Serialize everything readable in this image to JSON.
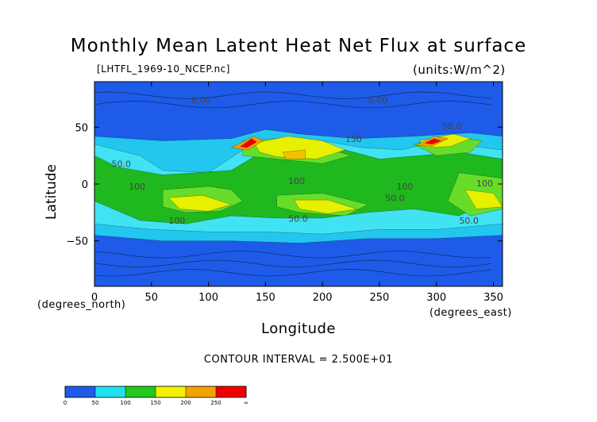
{
  "chart_data": {
    "type": "heatmap",
    "title": "Monthly Mean Latent Heat Net Flux at surface",
    "subtitle": "[LHTFL_1969-10_NCEP.nc]",
    "units": "(units:W/m^2)",
    "xlabel": "Longitude",
    "ylabel": "Latitude",
    "x_units_label": "(degrees_east)",
    "y_units_label": "(degrees_north)",
    "xlim": [
      0,
      358
    ],
    "ylim": [
      -90,
      90
    ],
    "x_ticks": [
      0,
      50,
      100,
      150,
      200,
      250,
      300,
      350
    ],
    "y_ticks": [
      -50,
      0,
      50
    ],
    "contour_interval_text": "CONTOUR INTERVAL = 2.500E+01",
    "contour_labels": [
      "0.00",
      "0.00",
      "50.0",
      "50.0",
      "150",
      "100",
      "100",
      "100",
      "100",
      "50.0",
      "50.0",
      "50.0",
      "100"
    ],
    "colorbar": {
      "levels": [
        0,
        50,
        100,
        150,
        200,
        250,
        "∞"
      ],
      "colors": [
        "#1e5be8",
        "#1fe1f0",
        "#22c81e",
        "#f3f000",
        "#f2a300",
        "#ee0000"
      ]
    },
    "colors": {
      "band_0_25": "#1e5be8",
      "band_25_50": "#23c6ef",
      "band_50_75": "#41e3f2",
      "band_75_100": "#1fb81f",
      "band_100_125": "#67dd2a",
      "band_125_150": "#e6f000",
      "band_150_175": "#f7e300",
      "band_175_200": "#f0c200",
      "band_200_250": "#f0a000",
      "band_250_up": "#ee0000"
    }
  }
}
